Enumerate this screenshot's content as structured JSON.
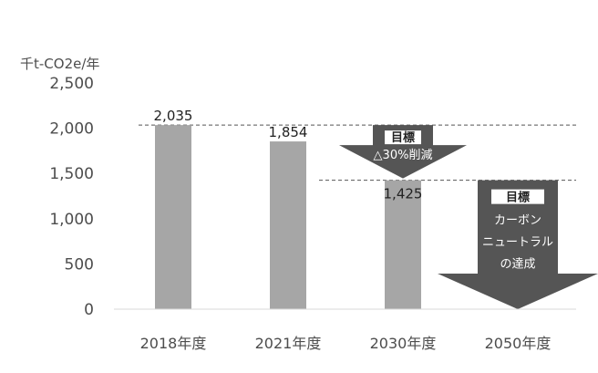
{
  "chart_data": {
    "type": "bar",
    "unit_label": "千t-CO2e/年",
    "categories": [
      "2018年度",
      "2021年度",
      "2030年度",
      "2050年度"
    ],
    "values": [
      2035,
      1854,
      1425,
      0
    ],
    "value_labels": [
      "2,035",
      "1,854",
      "1,425",
      ""
    ],
    "ylim": [
      0,
      2500
    ],
    "yticks": [
      0,
      500,
      1000,
      1500,
      2000,
      2500
    ],
    "ytick_labels": [
      "0",
      "500",
      "1,000",
      "1,500",
      "2,000",
      "2,500"
    ],
    "grid": false,
    "reference_lines": [
      {
        "value": 2035,
        "from_category": 0,
        "to_category": 3,
        "style": "dashed"
      },
      {
        "value": 1425,
        "from_category": 2,
        "to_category": 3,
        "style": "dashed"
      }
    ],
    "annotations": [
      {
        "category_between": [
          2,
          2
        ],
        "badge": "目標",
        "lines": [
          "△30%削減"
        ],
        "color": "#555555"
      },
      {
        "category": 3,
        "badge": "目標",
        "lines": [
          "カーボン",
          "ニュートラル",
          "の達成"
        ],
        "color": "#555555"
      }
    ],
    "colors": {
      "bar": "#a6a6a6",
      "axis": "#d9d9d9",
      "arrow": "#555555"
    }
  }
}
